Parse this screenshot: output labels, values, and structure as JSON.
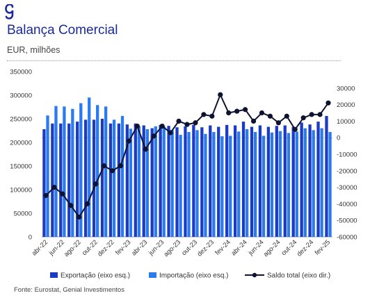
{
  "header": {
    "title": "Balança Comercial",
    "subtitle": "EUR, milhões",
    "logo_icon": "genial-g-logo",
    "brand_color": "#1a2a9c"
  },
  "footer": {
    "source": "Fonte: Eurostat, Genial Investimentos"
  },
  "colors": {
    "export": "#1c3bc4",
    "import": "#2a7bf0",
    "balance": "#0d1330"
  },
  "chart_data": {
    "type": "bar",
    "categories": [
      "abr-22",
      "mai-22",
      "jun-22",
      "jul-22",
      "ago-22",
      "set-22",
      "out-22",
      "nov-22",
      "dez-22",
      "jan-23",
      "fev-23",
      "mar-23",
      "abr-23",
      "mai-23",
      "jun-23",
      "jul-23",
      "ago-23",
      "set-23",
      "out-23",
      "nov-23",
      "dez-23",
      "jan-24",
      "fev-24",
      "mar-24",
      "abr-24",
      "mai-24",
      "jun-24",
      "jul-24",
      "ago-24",
      "set-24",
      "out-24",
      "nov-24",
      "dez-24",
      "jan-25",
      "fev-25"
    ],
    "x_tick_labels": [
      "abr-22",
      "jun-22",
      "ago-22",
      "out-22",
      "dez-22",
      "fev-23",
      "abr-23",
      "jun-23",
      "ago-23",
      "out-23",
      "dez-23",
      "fev-24",
      "abr-24",
      "jun-24",
      "ago-24",
      "out-24",
      "dez-24",
      "fev-25"
    ],
    "series": [
      {
        "name": "Exportação (eixo esq.)",
        "axis": "left",
        "kind": "bar",
        "values": [
          228000,
          240000,
          240000,
          240000,
          244000,
          248000,
          248000,
          250000,
          240000,
          240000,
          238000,
          240000,
          236000,
          230000,
          237000,
          235000,
          232000,
          234000,
          237000,
          232000,
          236000,
          233000,
          237000,
          236000,
          244000,
          233000,
          236000,
          233000,
          235000,
          236000,
          233000,
          242000,
          238000,
          244000,
          256000
        ]
      },
      {
        "name": "Importação (eixo esq.)",
        "axis": "left",
        "kind": "bar",
        "values": [
          257000,
          277000,
          276000,
          271000,
          283000,
          295000,
          279000,
          276000,
          248000,
          256000,
          229000,
          234000,
          228000,
          234000,
          234000,
          226000,
          216000,
          222000,
          226000,
          218000,
          222000,
          213000,
          214000,
          223000,
          228000,
          222000,
          214000,
          221000,
          224000,
          220000,
          223000,
          230000,
          226000,
          230000,
          222000
        ]
      },
      {
        "name": "Saldo total (eixo dir.)",
        "axis": "right",
        "kind": "line",
        "values": [
          -35000,
          -30000,
          -34000,
          -41000,
          -48000,
          -40000,
          -28000,
          -17000,
          -20000,
          -17000,
          -2000,
          7000,
          -7000,
          1000,
          7000,
          3000,
          10000,
          8000,
          9000,
          14000,
          13000,
          26000,
          15000,
          16000,
          17000,
          10000,
          15000,
          13000,
          9000,
          13000,
          5000,
          12000,
          14000,
          14000,
          21000
        ]
      }
    ],
    "left_axis": {
      "ylim": [
        0,
        350000
      ],
      "ticks": [
        "0",
        "50000",
        "100000",
        "150000",
        "200000",
        "250000",
        "300000",
        "350000"
      ]
    },
    "right_axis": {
      "ylim": [
        -60000,
        40000
      ],
      "ticks": [
        "-60000",
        "-50000",
        "-40000",
        "-30000",
        "-20000",
        "-10000",
        "0",
        "10000",
        "20000",
        "30000"
      ]
    },
    "legend_position": "bottom",
    "grid": false
  }
}
